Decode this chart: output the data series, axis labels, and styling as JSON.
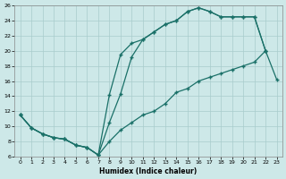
{
  "xlabel": "Humidex (Indice chaleur)",
  "xlim": [
    -0.5,
    23.5
  ],
  "ylim": [
    6,
    26
  ],
  "xticks": [
    0,
    1,
    2,
    3,
    4,
    5,
    6,
    7,
    8,
    9,
    10,
    11,
    12,
    13,
    14,
    15,
    16,
    17,
    18,
    19,
    20,
    21,
    22,
    23
  ],
  "yticks": [
    6,
    8,
    10,
    12,
    14,
    16,
    18,
    20,
    22,
    24,
    26
  ],
  "bg_color": "#cde8e8",
  "line_color": "#1a7068",
  "grid_color": "#a8cccc",
  "curve1_x": [
    0,
    1,
    2,
    3,
    4,
    5,
    6,
    7,
    8,
    9,
    10,
    11,
    12,
    13,
    14,
    15,
    16,
    17,
    18,
    19,
    20,
    21,
    22
  ],
  "curve1_y": [
    11.5,
    9.8,
    9.0,
    8.5,
    8.3,
    7.5,
    7.2,
    6.2,
    14.2,
    19.5,
    21.0,
    21.5,
    22.5,
    23.5,
    24.0,
    25.2,
    25.7,
    25.2,
    24.5,
    24.5,
    24.5,
    24.5,
    20.0
  ],
  "curve2_x": [
    0,
    1,
    2,
    3,
    4,
    5,
    6,
    7,
    8,
    9,
    10,
    11,
    12,
    13,
    14,
    15,
    16,
    17,
    18,
    19,
    20,
    21,
    22
  ],
  "curve2_y": [
    11.5,
    9.8,
    9.0,
    8.5,
    8.3,
    7.5,
    7.2,
    6.2,
    10.5,
    14.3,
    19.2,
    21.5,
    22.5,
    23.5,
    24.0,
    25.2,
    25.7,
    25.2,
    24.5,
    24.5,
    24.5,
    24.5,
    20.0
  ],
  "curve3_x": [
    0,
    1,
    2,
    3,
    4,
    5,
    6,
    7,
    8,
    9,
    10,
    11,
    12,
    13,
    14,
    15,
    16,
    17,
    18,
    19,
    20,
    21,
    22,
    23
  ],
  "curve3_y": [
    11.5,
    9.8,
    9.0,
    8.5,
    8.3,
    7.5,
    7.2,
    6.2,
    8.0,
    9.5,
    10.5,
    11.5,
    12.0,
    13.0,
    14.5,
    15.0,
    16.0,
    16.5,
    17.0,
    17.5,
    18.0,
    18.5,
    20.0,
    16.2
  ]
}
